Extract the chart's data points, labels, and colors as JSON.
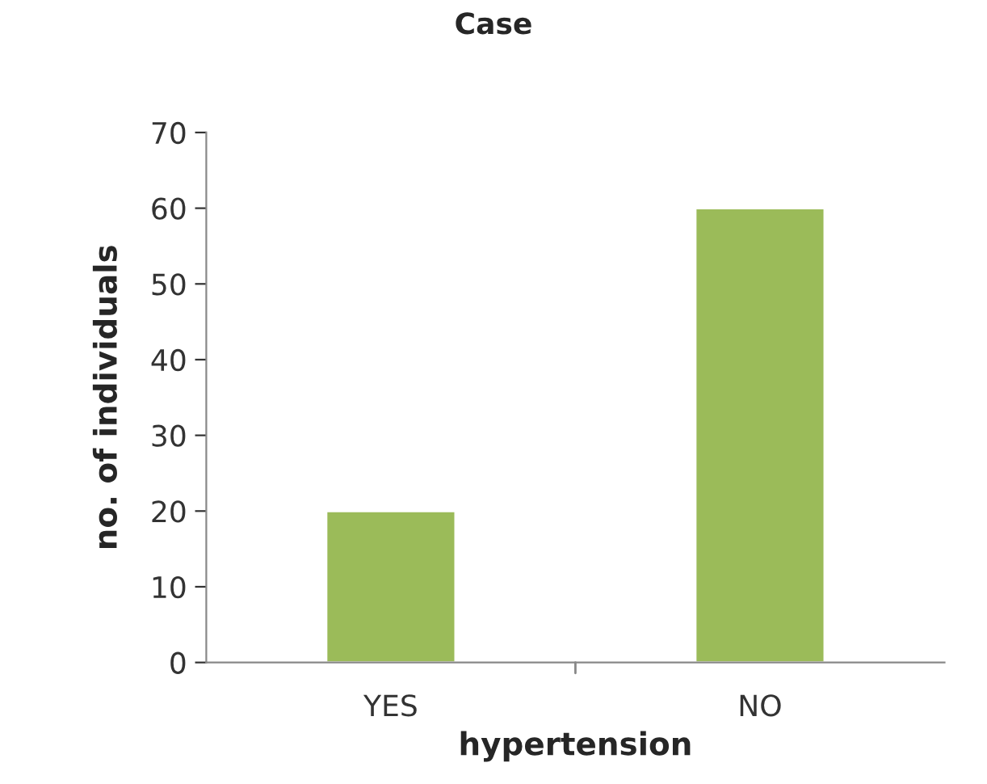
{
  "chart_data": {
    "type": "bar",
    "title": "Case",
    "xlabel": "hypertension",
    "ylabel": "no. of individuals",
    "categories": [
      "YES",
      "NO"
    ],
    "values": [
      20,
      60
    ],
    "color": "#9bbb59",
    "ylim": [
      0,
      70
    ],
    "yticks": [
      0,
      10,
      20,
      30,
      40,
      50,
      60,
      70
    ],
    "grid": false,
    "legend": false
  }
}
